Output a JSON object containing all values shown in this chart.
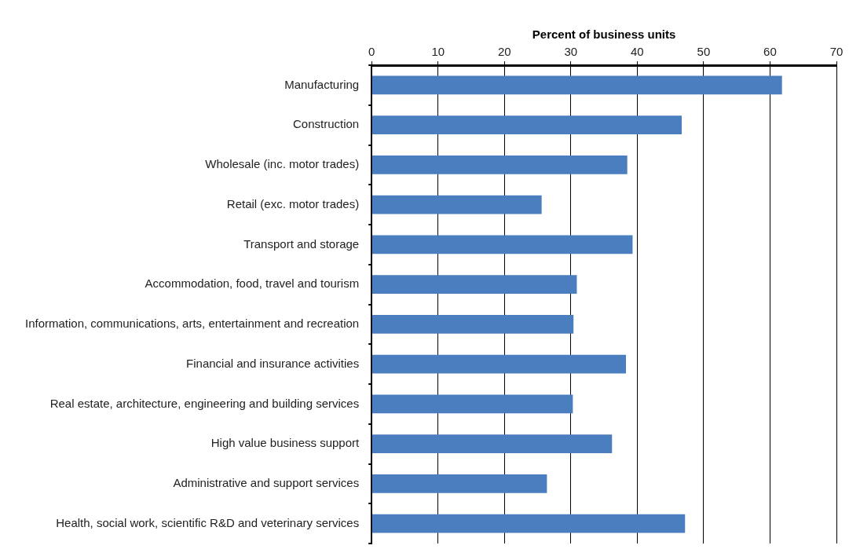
{
  "chart_data": {
    "type": "bar",
    "orientation": "horizontal",
    "xlabel": "Percent of business units",
    "categories": [
      "Manufacturing",
      "Construction",
      "Wholesale (inc. motor trades)",
      "Retail (exc. motor trades)",
      "Transport and storage",
      "Accommodation, food, travel and tourism",
      "Information, communications, arts, entertainment and recreation",
      "Financial and insurance activities",
      "Real estate, architecture, engineering and building services",
      "High value business support",
      "Administrative and support services",
      "Health, social work, scientific R&D and veterinary services"
    ],
    "values": [
      61.8,
      46.7,
      38.5,
      25.6,
      39.3,
      30.9,
      30.4,
      38.3,
      30.3,
      36.2,
      26.4,
      47.2
    ],
    "color": "#4a7ebf",
    "xlim": [
      0,
      70
    ],
    "xticks": [
      0,
      10,
      20,
      30,
      40,
      50,
      60,
      70
    ],
    "grid": "x",
    "legend": false
  }
}
